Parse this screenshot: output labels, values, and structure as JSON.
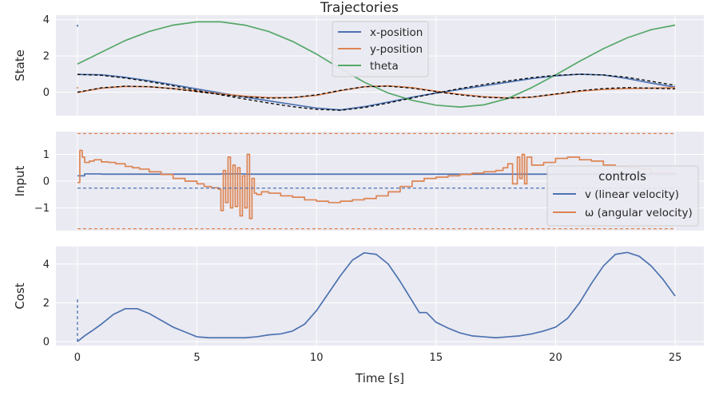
{
  "figure_title": "Trajectories",
  "xlabel": "Time [s]",
  "colors": {
    "blue": "#4c72b0",
    "orange": "#dd8452",
    "green": "#55a868",
    "black": "#000000"
  },
  "chart_data": [
    {
      "type": "line",
      "title": "Trajectories",
      "ylabel": "State",
      "xlim": [
        -0.9,
        26.2
      ],
      "ylim": [
        -1.3,
        4.25
      ],
      "yticks": [
        0,
        2,
        4
      ],
      "xticks": [
        0,
        5,
        10,
        15,
        20,
        25
      ],
      "grid": true,
      "legend": {
        "placement": "top-center"
      },
      "series": [
        {
          "name": "x-position",
          "color": "#4c72b0",
          "style": "solid",
          "x": [
            0,
            1,
            2,
            3,
            4,
            5,
            6,
            7,
            8,
            9,
            10,
            11,
            12,
            13,
            14,
            15,
            16,
            17,
            18,
            19,
            20,
            21,
            22,
            23,
            24,
            25
          ],
          "y": [
            0.98,
            0.96,
            0.82,
            0.63,
            0.41,
            0.18,
            -0.05,
            -0.27,
            -0.48,
            -0.68,
            -0.88,
            -0.98,
            -0.8,
            -0.55,
            -0.28,
            -0.05,
            0.15,
            0.35,
            0.55,
            0.75,
            0.9,
            0.99,
            0.95,
            0.75,
            0.5,
            0.28
          ]
        },
        {
          "name": "y-position",
          "color": "#dd8452",
          "style": "solid",
          "x": [
            0,
            1,
            2,
            3,
            4,
            5,
            6,
            7,
            8,
            9,
            10,
            11,
            12,
            13,
            14,
            15,
            16,
            17,
            18,
            19,
            20,
            21,
            22,
            23,
            24,
            25
          ],
          "y": [
            -0.02,
            0.22,
            0.32,
            0.3,
            0.2,
            0.05,
            -0.1,
            -0.22,
            -0.3,
            -0.3,
            -0.18,
            0.08,
            0.3,
            0.35,
            0.25,
            0.05,
            -0.12,
            -0.25,
            -0.32,
            -0.28,
            -0.12,
            0.05,
            0.15,
            0.2,
            0.22,
            0.25
          ]
        },
        {
          "name": "theta",
          "color": "#55a868",
          "style": "solid",
          "x": [
            0,
            1,
            2,
            3,
            4,
            5,
            6,
            7,
            8,
            9,
            10,
            11,
            12,
            13,
            14,
            15,
            16,
            17,
            18,
            19,
            20,
            21,
            22,
            23,
            24,
            25
          ],
          "y": [
            1.55,
            2.2,
            2.85,
            3.35,
            3.7,
            3.88,
            3.88,
            3.7,
            3.35,
            2.8,
            2.1,
            1.3,
            0.55,
            -0.05,
            -0.45,
            -0.72,
            -0.82,
            -0.7,
            -0.35,
            0.25,
            0.95,
            1.7,
            2.4,
            3.0,
            3.45,
            3.7
          ]
        },
        {
          "name": "",
          "color": "#000000",
          "style": "dashed",
          "x": [
            0,
            1,
            2,
            3,
            4,
            5,
            6,
            7,
            8,
            9,
            10,
            11,
            12,
            13,
            14,
            15,
            16,
            17,
            18,
            19,
            20,
            21,
            22,
            23,
            24,
            25
          ],
          "y": [
            0.98,
            0.93,
            0.78,
            0.58,
            0.35,
            0.1,
            -0.15,
            -0.38,
            -0.6,
            -0.8,
            -0.95,
            -1.0,
            -0.85,
            -0.6,
            -0.32,
            -0.05,
            0.2,
            0.42,
            0.62,
            0.8,
            0.93,
            0.99,
            0.95,
            0.82,
            0.6,
            0.38
          ]
        },
        {
          "name": "",
          "color": "#000000",
          "style": "dashed",
          "x": [
            0,
            1,
            2,
            3,
            4,
            5,
            6,
            7,
            8,
            9,
            10,
            11,
            12,
            13,
            14,
            15,
            16,
            17,
            18,
            19,
            20,
            21,
            22,
            23,
            24,
            25
          ],
          "y": [
            0.0,
            0.24,
            0.33,
            0.3,
            0.19,
            0.03,
            -0.13,
            -0.26,
            -0.33,
            -0.3,
            -0.15,
            0.1,
            0.3,
            0.33,
            0.22,
            0.03,
            -0.15,
            -0.28,
            -0.33,
            -0.27,
            -0.1,
            0.08,
            0.2,
            0.25,
            0.22,
            0.18
          ]
        },
        {
          "name": "",
          "color": "#4c72b0",
          "style": "solid",
          "x": [
            0,
            0
          ],
          "y": [
            3.72,
            3.62
          ]
        },
        {
          "name": "",
          "color": "#dd8452",
          "style": "solid",
          "x": [
            0,
            0
          ],
          "y": [
            0.28,
            0.2
          ]
        }
      ]
    },
    {
      "type": "line",
      "ylabel": "Input",
      "xlim": [
        -0.9,
        26.2
      ],
      "ylim": [
        -1.85,
        1.85
      ],
      "yticks": [
        -1,
        0,
        1
      ],
      "yticklabels": [
        "−1",
        "0",
        "1"
      ],
      "xticks": [
        0,
        5,
        10,
        15,
        20,
        25
      ],
      "grid": true,
      "legend": {
        "title": "controls",
        "placement": "center-right"
      },
      "series": [
        {
          "name": "v (linear velocity)",
          "color": "#4c72b0",
          "style": "steps",
          "x": [
            0,
            0.3,
            1,
            3,
            5,
            6,
            7,
            10,
            13,
            15,
            18,
            20,
            22,
            25
          ],
          "y": [
            0.2,
            0.27,
            0.26,
            0.26,
            0.26,
            0.27,
            0.26,
            0.26,
            0.26,
            0.26,
            0.26,
            0.26,
            0.26,
            0.26
          ]
        },
        {
          "name": "ω (angular velocity)",
          "color": "#dd8452",
          "style": "steps",
          "x": [
            0,
            0.1,
            0.2,
            0.3,
            0.5,
            0.7,
            1.0,
            1.3,
            1.6,
            2.0,
            2.3,
            2.6,
            3.0,
            3.5,
            4.0,
            4.5,
            5.0,
            5.3,
            5.6,
            5.9,
            6.0,
            6.1,
            6.2,
            6.3,
            6.4,
            6.5,
            6.6,
            6.7,
            6.8,
            6.9,
            7.0,
            7.1,
            7.2,
            7.3,
            7.4,
            7.5,
            7.7,
            8.0,
            8.5,
            9.0,
            9.5,
            10.0,
            10.5,
            11.0,
            11.5,
            12.0,
            12.5,
            13.0,
            13.5,
            14.0,
            14.5,
            15.0,
            15.5,
            16.0,
            16.5,
            17.0,
            17.5,
            17.8,
            18.0,
            18.2,
            18.4,
            18.5,
            18.6,
            18.7,
            18.8,
            19.0,
            19.5,
            20.0,
            20.5,
            21.0,
            21.5,
            22.0,
            22.5,
            23.0,
            23.5,
            24.0,
            24.5,
            25.0
          ],
          "y": [
            -0.05,
            1.15,
            0.9,
            0.7,
            0.75,
            0.8,
            0.72,
            0.7,
            0.65,
            0.55,
            0.5,
            0.45,
            0.35,
            0.25,
            0.1,
            0.0,
            -0.1,
            -0.2,
            -0.25,
            -0.3,
            -1.1,
            0.4,
            -0.8,
            0.9,
            -1.0,
            0.6,
            -0.95,
            0.5,
            -1.3,
            0.2,
            -1.0,
            1.0,
            -1.4,
            0.1,
            -0.45,
            -0.5,
            -0.4,
            -0.45,
            -0.55,
            -0.6,
            -0.7,
            -0.75,
            -0.8,
            -0.75,
            -0.7,
            -0.65,
            -0.55,
            -0.4,
            -0.2,
            0.0,
            0.1,
            0.15,
            0.2,
            0.25,
            0.3,
            0.35,
            0.4,
            0.5,
            0.65,
            -0.1,
            0.9,
            0.1,
            1.0,
            -0.1,
            0.9,
            0.6,
            0.7,
            0.85,
            0.9,
            0.8,
            0.75,
            0.6,
            0.55,
            0.5,
            0.45,
            0.3,
            0.3,
            0.25
          ]
        },
        {
          "name": "",
          "color": "#4c72b0",
          "style": "dashed",
          "x": [
            0,
            25
          ],
          "y": [
            -0.26,
            -0.26
          ]
        },
        {
          "name": "",
          "color": "#dd8452",
          "style": "dashed",
          "x": [
            0,
            25
          ],
          "y": [
            1.78,
            1.78
          ]
        },
        {
          "name": "",
          "color": "#dd8452",
          "style": "dashed",
          "x": [
            0,
            25
          ],
          "y": [
            -1.78,
            -1.78
          ]
        }
      ]
    },
    {
      "type": "line",
      "ylabel": "Cost",
      "xlabel": "Time [s]",
      "xlim": [
        -0.9,
        26.2
      ],
      "ylim": [
        -0.2,
        4.9
      ],
      "yticks": [
        0,
        2,
        4
      ],
      "xticks": [
        0,
        5,
        10,
        15,
        20,
        25
      ],
      "grid": true,
      "series": [
        {
          "name": "",
          "color": "#4c72b0",
          "style": "solid",
          "x": [
            0,
            0.3,
            0.6,
            1.0,
            1.5,
            2.0,
            2.5,
            3.0,
            3.5,
            4.0,
            4.5,
            5.0,
            5.5,
            6.0,
            6.5,
            7.0,
            7.5,
            8.0,
            8.5,
            9.0,
            9.5,
            10.0,
            10.5,
            11.0,
            11.5,
            12.0,
            12.5,
            13.0,
            13.5,
            14.0,
            14.3,
            14.6,
            15.0,
            15.5,
            16.0,
            16.5,
            17.0,
            17.5,
            18.0,
            18.5,
            19.0,
            19.5,
            20.0,
            20.5,
            21.0,
            21.5,
            22.0,
            22.5,
            23.0,
            23.5,
            24.0,
            24.5,
            25.0
          ],
          "y": [
            0.0,
            0.3,
            0.55,
            0.9,
            1.4,
            1.7,
            1.7,
            1.45,
            1.1,
            0.75,
            0.5,
            0.25,
            0.2,
            0.2,
            0.2,
            0.2,
            0.25,
            0.35,
            0.4,
            0.55,
            0.9,
            1.6,
            2.5,
            3.4,
            4.2,
            4.58,
            4.5,
            4.0,
            3.1,
            2.1,
            1.5,
            1.5,
            1.0,
            0.7,
            0.45,
            0.3,
            0.25,
            0.2,
            0.25,
            0.3,
            0.4,
            0.55,
            0.75,
            1.2,
            2.0,
            3.0,
            3.9,
            4.5,
            4.6,
            4.4,
            3.9,
            3.2,
            2.35
          ]
        },
        {
          "name": "",
          "color": "#4c72b0",
          "style": "dashed",
          "x": [
            0,
            0
          ],
          "y": [
            0.0,
            2.3
          ]
        }
      ]
    }
  ]
}
